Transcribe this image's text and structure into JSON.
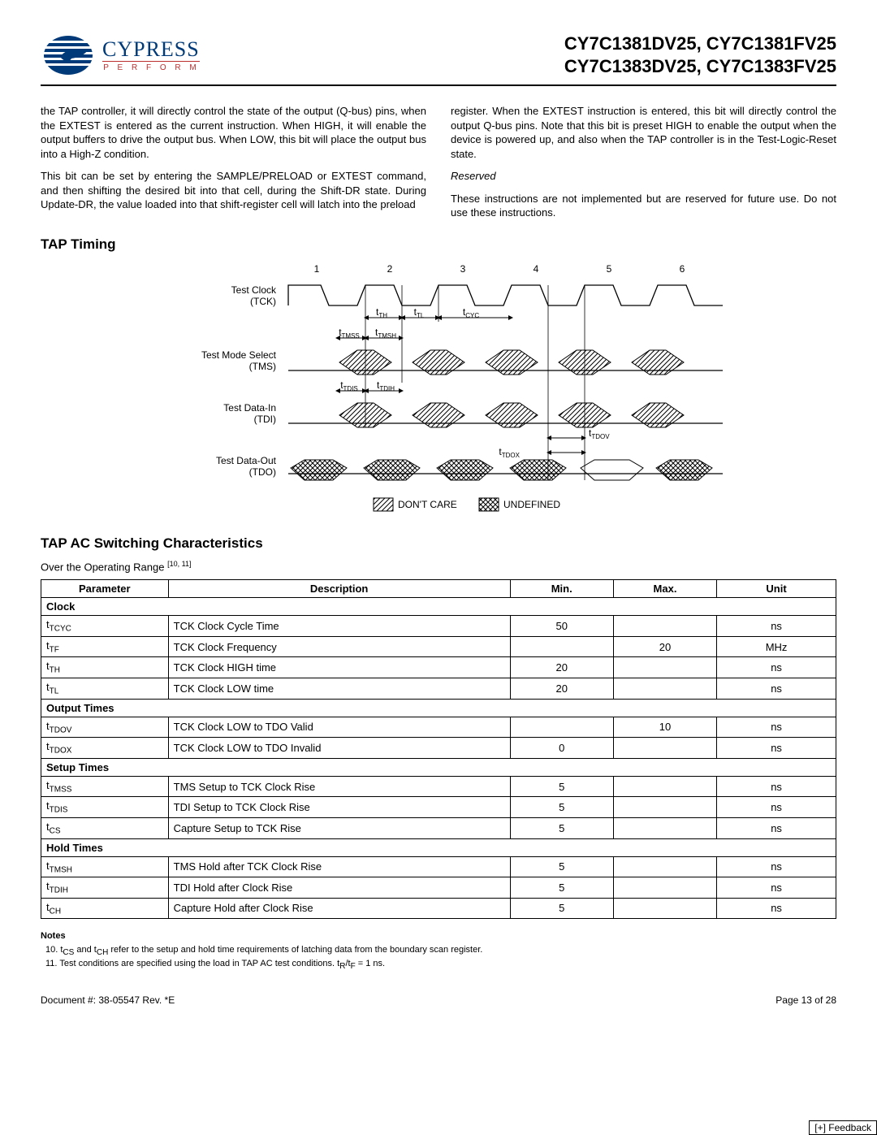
{
  "logo": {
    "brand": "CYPRESS",
    "tagline": "P E R F O R M"
  },
  "partNumbers": {
    "line1": "CY7C1381DV25, CY7C1381FV25",
    "line2": "CY7C1383DV25, CY7C1383FV25"
  },
  "bodyText": {
    "leftP1": "the TAP controller, it will directly control the state of the output (Q-bus) pins, when the EXTEST is entered as the current instruction. When HIGH, it will enable the output buffers to drive the output bus. When LOW, this bit will place the output bus into a High-Z condition.",
    "leftP2": "This bit can be set by entering the SAMPLE/PRELOAD or EXTEST command, and then shifting the desired bit into that cell, during the Shift-DR state. During Update-DR, the value loaded into that shift-register cell will latch into the preload",
    "rightP1": "register. When the EXTEST instruction is entered, this bit will directly control the output Q-bus pins. Note that this bit is preset HIGH to enable the output when the device is powered up, and also when the TAP controller is in the Test-Logic-Reset state.",
    "reservedHead": "Reserved",
    "reservedBody": "These instructions are not implemented but are reserved for future use. Do not use these instructions."
  },
  "timing": {
    "title": "TAP Timing",
    "signals": {
      "tck": "Test Clock\n(TCK)",
      "tms": "Test Mode Select\n(TMS)",
      "tdi": "Test Data-In\n(TDI)",
      "tdo": "Test Data-Out\n(TDO)"
    },
    "cycleNumbers": [
      "1",
      "2",
      "3",
      "4",
      "5",
      "6"
    ],
    "labels": {
      "tTH": "t",
      "tTH_sub": "TH",
      "tTL": "t",
      "tTL_sub": "TL",
      "tCYC": "t",
      "tCYC_sub": "CYC",
      "tTMSS": "t",
      "tTMSS_sub": "TMSS",
      "tTMSH": "t",
      "tTMSH_sub": "TMSH",
      "tTDIS": "t",
      "tTDIS_sub": "TDIS",
      "tTDIH": "t",
      "tTDIH_sub": "TDIH",
      "tTDOV": "t",
      "tTDOV_sub": "TDOV",
      "tTDOX": "t",
      "tTDOX_sub": "TDOX"
    },
    "legend": {
      "dontcare": "DON'T CARE",
      "undefined": "UNDEFINED"
    },
    "svgStyle": {
      "fontFamily": "Arial, Helvetica, sans-serif",
      "stroke": "#000000",
      "dontCareFill": "hatch45",
      "undefinedFill": "crosshatch"
    }
  },
  "specSection": {
    "title": "TAP AC Switching Characteristics",
    "subtitle_pre": "Over the Operating Range ",
    "subtitle_refs": "[10, 11]"
  },
  "table": {
    "headers": [
      "Parameter",
      "Description",
      "Min.",
      "Max.",
      "Unit"
    ],
    "colWidths": [
      "16%",
      "43%",
      "13%",
      "13%",
      "15%"
    ],
    "groups": [
      {
        "label": "Clock",
        "rows": [
          {
            "param": "t",
            "psub": "TCYC",
            "desc": "TCK Clock Cycle Time",
            "min": "50",
            "max": "",
            "unit": "ns"
          },
          {
            "param": "t",
            "psub": "TF",
            "desc": "TCK Clock Frequency",
            "min": "",
            "max": "20",
            "unit": "MHz"
          },
          {
            "param": "t",
            "psub": "TH",
            "desc": "TCK Clock HIGH time",
            "min": "20",
            "max": "",
            "unit": "ns"
          },
          {
            "param": "t",
            "psub": "TL",
            "desc": "TCK Clock LOW time",
            "min": "20",
            "max": "",
            "unit": "ns"
          }
        ]
      },
      {
        "label": "Output Times",
        "rows": [
          {
            "param": "t",
            "psub": "TDOV",
            "desc": "TCK Clock LOW to TDO Valid",
            "min": "",
            "max": "10",
            "unit": "ns"
          },
          {
            "param": "t",
            "psub": "TDOX",
            "desc": "TCK Clock LOW to TDO Invalid",
            "min": "0",
            "max": "",
            "unit": "ns"
          }
        ]
      },
      {
        "label": "Setup Times",
        "rows": [
          {
            "param": "t",
            "psub": "TMSS",
            "desc": "TMS Setup to TCK Clock Rise",
            "min": "5",
            "max": "",
            "unit": "ns"
          },
          {
            "param": "t",
            "psub": "TDIS",
            "desc": "TDI Setup to TCK Clock Rise",
            "min": "5",
            "max": "",
            "unit": "ns"
          },
          {
            "param": "t",
            "psub": "CS",
            "desc": "Capture Setup to TCK Rise",
            "min": "5",
            "max": "",
            "unit": "ns"
          }
        ]
      },
      {
        "label": "Hold Times",
        "rows": [
          {
            "param": "t",
            "psub": "TMSH",
            "desc": "TMS Hold after TCK Clock Rise",
            "min": "5",
            "max": "",
            "unit": "ns"
          },
          {
            "param": "t",
            "psub": "TDIH",
            "desc": "TDI Hold after Clock Rise",
            "min": "5",
            "max": "",
            "unit": "ns"
          },
          {
            "param": "t",
            "psub": "CH",
            "desc": "Capture Hold after Clock Rise",
            "min": "5",
            "max": "",
            "unit": "ns"
          }
        ]
      }
    ]
  },
  "notes": {
    "heading": "Notes",
    "items": [
      "10. t_CS and t_CH refer to the setup and hold time requirements of latching data from the boundary scan register.",
      "11. Test conditions are specified using the load in TAP AC test conditions. t_R/t_F = 1 ns."
    ]
  },
  "footer": {
    "left": "Document #: 38-05547 Rev. *E",
    "right": "Page 13 of 28",
    "feedback": "[+] Feedback"
  }
}
